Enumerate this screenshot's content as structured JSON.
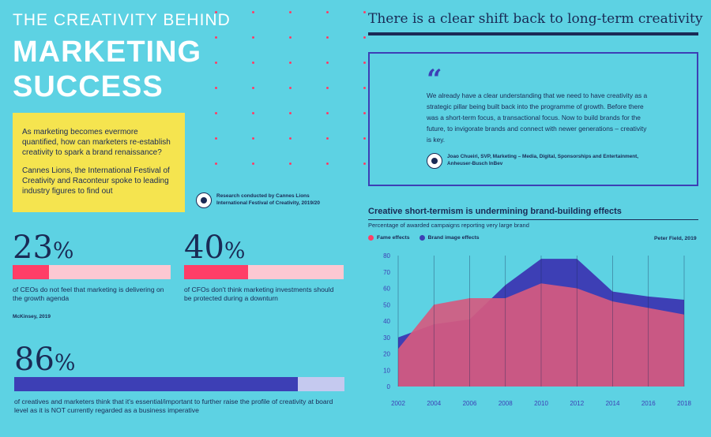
{
  "colors": {
    "background": "#5dd2e3",
    "navy": "#1a2a55",
    "pink": "#ff3e67",
    "light_pink": "#fcc8d2",
    "yellow": "#f5e44f",
    "indigo": "#3d3fb5",
    "lavender": "#c5c9ef",
    "fame_fill": "#d55a80",
    "brand_fill": "#3d3fb5"
  },
  "header": {
    "eyebrow": "THE CREATIVITY BEHIND",
    "headline_line1": "MARKETING",
    "headline_line2": "SUCCESS"
  },
  "intro": {
    "paragraph1": "As marketing becomes evermore quantified, how can marketers re-establish creativity to spark a brand renaissance?",
    "paragraph2": "Cannes Lions, the International Festival of Creativity and Raconteur spoke to leading industry figures to find out"
  },
  "research_note": "Research conducted by Cannes Lions International Festival of Creativity, 2019/20",
  "stats": [
    {
      "value": "23",
      "unit": "%",
      "fraction": 0.23,
      "text": "of CEOs do not feel that marketing is delivering on the growth agenda"
    },
    {
      "value": "40",
      "unit": "%",
      "fraction": 0.4,
      "text": "of CFOs don't think marketing investments should be protected during a downturn"
    },
    {
      "value": "86",
      "unit": "%",
      "fraction": 0.86,
      "text": "of creatives and marketers think that it's essential/important to further raise the profile of creativity at board level as it is NOT currently regarded as a business imperative"
    }
  ],
  "stats_source": "McKinsey, 2019",
  "right": {
    "title": "There is a clear shift back to long-term creativity",
    "quote_mark": "“",
    "quote": "We already have a clear understanding that we need to have creativity as a strategic pillar being built back into the programme of growth. Before there was a short-term focus, a transactional focus. Now to build brands for the future, to invigorate brands and connect with newer generations – creativity is key.",
    "quote_author": "Joao Chueiri, SVP, Marketing – Media, Digital, Sponsorships and Entertainment, Anheuser-Busch InBev"
  },
  "chart_data": {
    "type": "area",
    "title": "Creative short-termism is undermining brand-building effects",
    "subtitle": "Percentage of awarded campaigns reporting very large brand",
    "source": "Peter Field, 2019",
    "x": [
      2002,
      2004,
      2006,
      2008,
      2010,
      2012,
      2014,
      2016,
      2018
    ],
    "x_ticks": [
      "2002",
      "2004",
      "2006",
      "2008",
      "2010",
      "2012",
      "2014",
      "2016",
      "2018"
    ],
    "y_ticks": [
      "0",
      "10",
      "20",
      "30",
      "40",
      "50",
      "60",
      "70",
      "80"
    ],
    "ylim": [
      0,
      80
    ],
    "grid": "vertical",
    "legend_position": "top-left",
    "series": [
      {
        "name": "Fame effects",
        "color": "#ff3e67",
        "values": [
          23,
          50,
          54,
          54,
          63,
          60,
          52,
          48,
          44
        ]
      },
      {
        "name": "Brand image effects",
        "color": "#3d3fb5",
        "values": [
          30,
          38,
          41,
          62,
          78,
          78,
          58,
          55,
          53
        ]
      }
    ]
  }
}
